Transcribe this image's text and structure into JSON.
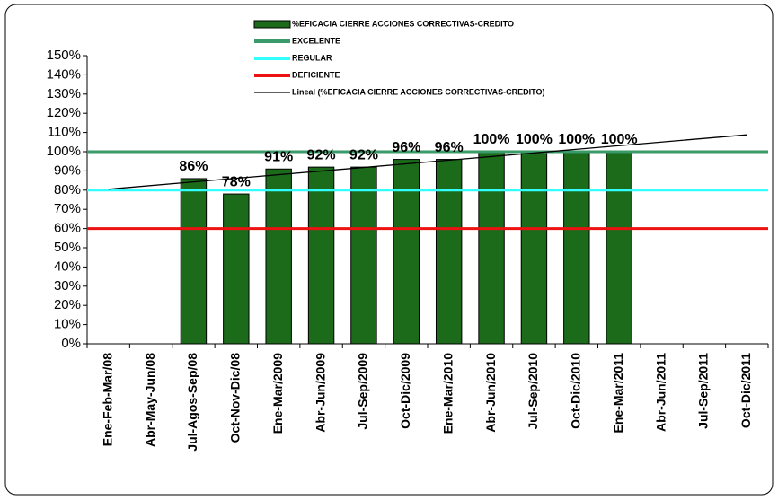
{
  "chart_data": {
    "type": "bar",
    "categories": [
      "Ene-Feb-Mar/08",
      "Abr-May-Jun/08",
      "Jul-Agos-Sep/08",
      "Oct-Nov-Dic/08",
      "Ene-Mar/2009",
      "Abr-Jun/2009",
      "Jul-Sep/2009",
      "Oct-Dic/2009",
      "Ene-Mar/2010",
      "Abr-Jun/2010",
      "Jul-Sep/2010",
      "Oct-Dic/2010",
      "Ene-Mar/2011",
      "Abr-Jun/2011",
      "Jul-Sep/2011",
      "Oct-Dic/2011"
    ],
    "series": [
      {
        "name": "%EFICACIA CIERRE ACCIONES CORRECTIVAS-CREDITO",
        "color": "#1b6b1b",
        "values": [
          null,
          null,
          86,
          78,
          91,
          92,
          92,
          96,
          96,
          100,
          100,
          100,
          100,
          null,
          null,
          null
        ],
        "value_labels": [
          null,
          null,
          "86%",
          "78%",
          "91%",
          "92%",
          "92%",
          "96%",
          "96%",
          "100%",
          "100%",
          "100%",
          "100%",
          null,
          null,
          null
        ]
      }
    ],
    "reference_lines": [
      {
        "name": "EXCELENTE",
        "color": "#3a9a6a",
        "value": 100
      },
      {
        "name": "REGULAR",
        "color": "#33ffff",
        "value": 80
      },
      {
        "name": "DEFICIENTE",
        "color": "#ee1111",
        "value": 60
      }
    ],
    "trend": {
      "name": "Lineal (%EFICACIA CIERRE ACCIONES CORRECTIVAS-CREDITO)",
      "color": "#000000",
      "values": [
        80.5,
        108.8
      ]
    },
    "ylim": [
      0,
      150
    ],
    "yticks": [
      {
        "value": 0,
        "label": "0%"
      },
      {
        "value": 10,
        "label": "10%"
      },
      {
        "value": 20,
        "label": "20%"
      },
      {
        "value": 30,
        "label": "30%"
      },
      {
        "value": 40,
        "label": "40%"
      },
      {
        "value": 50,
        "label": "50%"
      },
      {
        "value": 60,
        "label": "60%"
      },
      {
        "value": 70,
        "label": "70%"
      },
      {
        "value": 80,
        "label": "80%"
      },
      {
        "value": 90,
        "label": "90%"
      },
      {
        "value": 100,
        "label": "100%"
      },
      {
        "value": 110,
        "label": "110%"
      },
      {
        "value": 120,
        "label": "120%"
      },
      {
        "value": 130,
        "label": "130%"
      },
      {
        "value": 140,
        "label": "140%"
      },
      {
        "value": 150,
        "label": "150%"
      }
    ]
  }
}
